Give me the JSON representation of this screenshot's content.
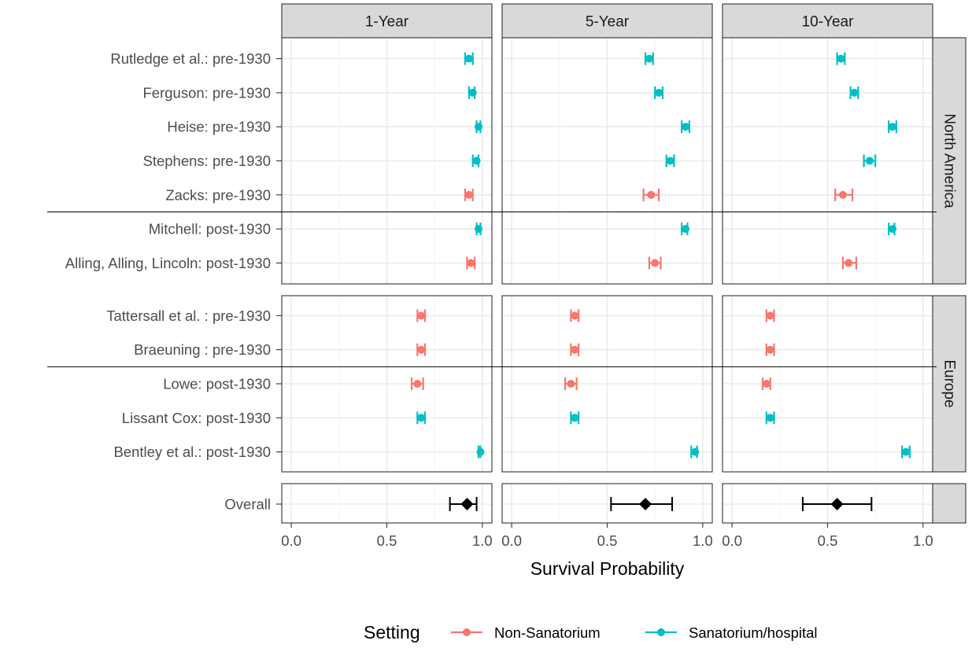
{
  "chart_data": {
    "type": "forest",
    "xlabel": "Survival Probability",
    "xlim": [
      -0.05,
      1.05
    ],
    "x_ticks": [
      0.0,
      0.5,
      1.0
    ],
    "x_tick_labels": [
      "0.0",
      "0.5",
      "1.0"
    ],
    "grid": true,
    "facets": [
      "1-Year",
      "5-Year",
      "10-Year"
    ],
    "regions": [
      {
        "name": "North America",
        "studies": [
          {
            "label": "Rutledge et al.: pre-1930",
            "setting": "Sanatorium/hospital",
            "values": [
              [
                0.93,
                0.91,
                0.95
              ],
              [
                0.72,
                0.7,
                0.74
              ],
              [
                0.57,
                0.55,
                0.59
              ]
            ]
          },
          {
            "label": "Ferguson: pre-1930",
            "setting": "Sanatorium/hospital",
            "values": [
              [
                0.95,
                0.93,
                0.96
              ],
              [
                0.77,
                0.75,
                0.79
              ],
              [
                0.64,
                0.62,
                0.66
              ]
            ]
          },
          {
            "label": "Heise: pre-1930",
            "setting": "Sanatorium/hospital",
            "values": [
              [
                0.98,
                0.97,
                0.99
              ],
              [
                0.91,
                0.89,
                0.93
              ],
              [
                0.84,
                0.82,
                0.86
              ]
            ]
          },
          {
            "label": "Stephens: pre-1930",
            "setting": "Sanatorium/hospital",
            "values": [
              [
                0.97,
                0.95,
                0.98
              ],
              [
                0.83,
                0.81,
                0.85
              ],
              [
                0.72,
                0.69,
                0.75
              ]
            ]
          },
          {
            "label": "Zacks: pre-1930",
            "setting": "Non-Sanatorium",
            "values": [
              [
                0.93,
                0.91,
                0.95
              ],
              [
                0.73,
                0.69,
                0.77
              ],
              [
                0.58,
                0.54,
                0.63
              ]
            ]
          },
          {
            "label": "Mitchell: post-1930",
            "setting": "Sanatorium/hospital",
            "values": [
              [
                0.98,
                0.97,
                0.99
              ],
              [
                0.91,
                0.89,
                0.92
              ],
              [
                0.84,
                0.82,
                0.85
              ]
            ]
          },
          {
            "label": "Alling, Alling, Lincoln: post-1930",
            "setting": "Non-Sanatorium",
            "values": [
              [
                0.94,
                0.92,
                0.96
              ],
              [
                0.75,
                0.72,
                0.78
              ],
              [
                0.61,
                0.58,
                0.65
              ]
            ]
          }
        ]
      },
      {
        "name": "Europe",
        "studies": [
          {
            "label": "Tattersall et al. : pre-1930",
            "setting": "Non-Sanatorium",
            "values": [
              [
                0.68,
                0.66,
                0.7
              ],
              [
                0.33,
                0.31,
                0.35
              ],
              [
                0.2,
                0.18,
                0.22
              ]
            ]
          },
          {
            "label": "Braeuning : pre-1930",
            "setting": "Non-Sanatorium",
            "values": [
              [
                0.68,
                0.66,
                0.7
              ],
              [
                0.33,
                0.31,
                0.35
              ],
              [
                0.2,
                0.18,
                0.22
              ]
            ]
          },
          {
            "label": "Lowe: post-1930",
            "setting": "Non-Sanatorium",
            "values": [
              [
                0.66,
                0.63,
                0.69
              ],
              [
                0.31,
                0.28,
                0.34
              ],
              [
                0.18,
                0.16,
                0.2
              ]
            ]
          },
          {
            "label": "Lissant Cox: post-1930",
            "setting": "Sanatorium/hospital",
            "values": [
              [
                0.68,
                0.66,
                0.7
              ],
              [
                0.33,
                0.31,
                0.35
              ],
              [
                0.2,
                0.18,
                0.22
              ]
            ]
          },
          {
            "label": "Bentley et al.: post-1930",
            "setting": "Sanatorium/hospital",
            "values": [
              [
                0.99,
                0.98,
                0.99
              ],
              [
                0.96,
                0.94,
                0.97
              ],
              [
                0.91,
                0.89,
                0.93
              ]
            ]
          }
        ]
      },
      {
        "name": "",
        "studies": [
          {
            "label": "Overall",
            "setting": "Overall",
            "values": [
              [
                0.92,
                0.83,
                0.97
              ],
              [
                0.7,
                0.52,
                0.84
              ],
              [
                0.55,
                0.37,
                0.73
              ]
            ]
          }
        ]
      }
    ],
    "divider_after": {
      "North America": "Zacks: pre-1930",
      "Europe": "Braeuning : pre-1930"
    },
    "legend": {
      "title": "Setting",
      "position": "bottom",
      "entries": [
        "Non-Sanatorium",
        "Sanatorium/hospital"
      ]
    },
    "colors": {
      "Non-Sanatorium": "#F8766D",
      "Sanatorium/hospital": "#00BFC4",
      "Overall": "#000000"
    }
  }
}
